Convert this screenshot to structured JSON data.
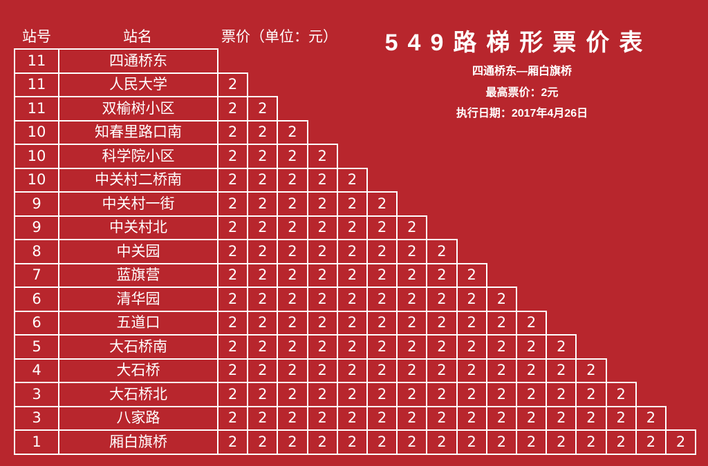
{
  "headers": {
    "stop_no": "站号",
    "stop_name": "站名",
    "fare_unit": "票价（单位：元）"
  },
  "title": "549路梯形票价表",
  "route": "四通桥东—厢白旗桥",
  "max_fare": "最高票价：2元",
  "effective_date": "执行日期：2017年4月26日",
  "stations": [
    {
      "no": "11",
      "name": "四通桥东"
    },
    {
      "no": "11",
      "name": "人民大学"
    },
    {
      "no": "11",
      "name": "双榆树小区"
    },
    {
      "no": "10",
      "name": "知春里路口南"
    },
    {
      "no": "10",
      "name": "科学院小区"
    },
    {
      "no": "10",
      "name": "中关村二桥南"
    },
    {
      "no": "9",
      "name": "中关村一街"
    },
    {
      "no": "9",
      "name": "中关村北"
    },
    {
      "no": "8",
      "name": "中关园"
    },
    {
      "no": "7",
      "name": "蓝旗营"
    },
    {
      "no": "6",
      "name": "清华园"
    },
    {
      "no": "6",
      "name": "五道口"
    },
    {
      "no": "5",
      "name": "大石桥南"
    },
    {
      "no": "4",
      "name": "大石桥"
    },
    {
      "no": "3",
      "name": "大石桥北"
    },
    {
      "no": "3",
      "name": "八家路"
    },
    {
      "no": "1",
      "name": "厢白旗桥"
    }
  ],
  "fares": [
    [],
    [
      "2"
    ],
    [
      "2",
      "2"
    ],
    [
      "2",
      "2",
      "2"
    ],
    [
      "2",
      "2",
      "2",
      "2"
    ],
    [
      "2",
      "2",
      "2",
      "2",
      "2"
    ],
    [
      "2",
      "2",
      "2",
      "2",
      "2",
      "2"
    ],
    [
      "2",
      "2",
      "2",
      "2",
      "2",
      "2",
      "2"
    ],
    [
      "2",
      "2",
      "2",
      "2",
      "2",
      "2",
      "2",
      "2"
    ],
    [
      "2",
      "2",
      "2",
      "2",
      "2",
      "2",
      "2",
      "2",
      "2"
    ],
    [
      "2",
      "2",
      "2",
      "2",
      "2",
      "2",
      "2",
      "2",
      "2",
      "2"
    ],
    [
      "2",
      "2",
      "2",
      "2",
      "2",
      "2",
      "2",
      "2",
      "2",
      "2",
      "2"
    ],
    [
      "2",
      "2",
      "2",
      "2",
      "2",
      "2",
      "2",
      "2",
      "2",
      "2",
      "2",
      "2"
    ],
    [
      "2",
      "2",
      "2",
      "2",
      "2",
      "2",
      "2",
      "2",
      "2",
      "2",
      "2",
      "2",
      "2"
    ],
    [
      "2",
      "2",
      "2",
      "2",
      "2",
      "2",
      "2",
      "2",
      "2",
      "2",
      "2",
      "2",
      "2",
      "2"
    ],
    [
      "2",
      "2",
      "2",
      "2",
      "2",
      "2",
      "2",
      "2",
      "2",
      "2",
      "2",
      "2",
      "2",
      "2",
      "2"
    ],
    [
      "2",
      "2",
      "2",
      "2",
      "2",
      "2",
      "2",
      "2",
      "2",
      "2",
      "2",
      "2",
      "2",
      "2",
      "2",
      "2"
    ]
  ]
}
